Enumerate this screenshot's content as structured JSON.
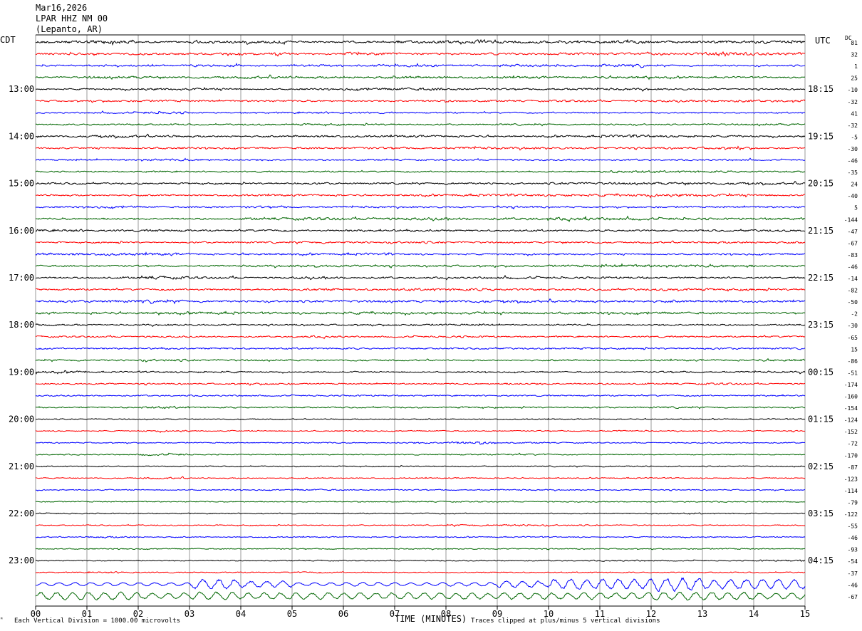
{
  "header": {
    "date": "Mar16,2026",
    "station": "LPAR HHZ NM 00",
    "location": "(Lepanto, AR)"
  },
  "corner_labels": {
    "left": "CDT",
    "right": "UTC",
    "dc": "DC"
  },
  "footer": {
    "scale_note": "Each Vertical Division = 1000.00 microvolts",
    "xlabel": "TIME (MINUTES)",
    "clip_note": "Traces clipped at plus/minus 5 vertical divisions"
  },
  "colors": {
    "cycle": [
      "#000000",
      "#ff0000",
      "#0000ff",
      "#006600"
    ],
    "grid": "#9a9a9a"
  },
  "chart_data": {
    "type": "helicorder",
    "x": {
      "label": "TIME (MINUTES)",
      "range": [
        0,
        15
      ],
      "ticks": [
        "00",
        "01",
        "02",
        "03",
        "04",
        "05",
        "06",
        "07",
        "08",
        "09",
        "10",
        "11",
        "12",
        "13",
        "14",
        "15"
      ]
    },
    "local_hour_labels": [
      "13:00",
      "14:00",
      "15:00",
      "16:00",
      "17:00",
      "18:00",
      "19:00",
      "20:00",
      "21:00",
      "22:00",
      "23:00"
    ],
    "utc_hour_labels": [
      "18:15",
      "19:15",
      "20:15",
      "21:15",
      "22:15",
      "23:15",
      "00:15",
      "01:15",
      "02:15",
      "03:15",
      "04:15"
    ],
    "dc_offsets": [
      81,
      32,
      1,
      25,
      -10,
      -32,
      41,
      -32,
      -5,
      -30,
      -46,
      -35,
      24,
      -40,
      5,
      -144,
      -47,
      -67,
      -83,
      -46,
      -14,
      -82,
      -50,
      -2,
      -30,
      -65,
      15,
      -86,
      -51,
      -174,
      -160,
      -154,
      -124,
      -152,
      -72,
      -170,
      -87,
      -123,
      -114,
      -79,
      -122,
      -55,
      -46,
      -93,
      -54,
      -37,
      -46,
      -67
    ],
    "trace_count": 48,
    "trace_minutes": 15,
    "activity": [
      [
        2.0,
        2.6,
        1.2,
        1.8,
        2.0,
        1.2,
        1.5,
        2.0,
        2.2,
        1.8,
        1.5,
        2.2,
        1.6,
        1.8,
        2.0
      ],
      [
        1.5,
        1.4,
        1.6,
        1.5,
        1.8,
        1.4,
        2.0,
        1.6,
        1.5,
        1.4,
        1.8,
        1.6,
        1.5,
        2.4,
        1.8
      ],
      [
        1.2,
        1.4,
        1.2,
        1.8,
        1.2,
        1.5,
        1.4,
        1.8,
        1.2,
        1.9,
        1.4,
        1.8,
        1.2,
        1.2,
        1.2
      ],
      [
        1.2,
        1.8,
        1.6,
        1.4,
        1.9,
        1.6,
        1.5,
        1.8,
        1.4,
        1.6,
        1.4,
        1.8,
        1.4,
        1.2,
        1.1
      ],
      [
        1.0,
        1.2,
        1.5,
        1.4,
        1.0,
        1.2,
        1.6,
        2.0,
        1.4,
        1.2,
        1.5,
        1.6,
        1.2,
        1.0,
        1.0
      ],
      [
        1.2,
        1.4,
        1.6,
        1.2,
        1.4,
        1.2,
        1.2,
        1.4,
        1.5,
        1.2,
        1.6,
        1.2,
        1.4,
        1.8,
        1.5
      ],
      [
        1.0,
        1.2,
        1.6,
        1.0,
        1.2,
        1.4,
        1.2,
        1.0,
        1.1,
        1.0,
        1.2,
        1.0,
        1.0,
        1.0,
        1.0
      ],
      [
        1.0,
        1.2,
        1.2,
        1.0,
        1.2,
        1.4,
        1.2,
        1.0,
        1.0,
        1.2,
        1.0,
        1.2,
        1.0,
        1.2,
        1.4
      ],
      [
        1.4,
        1.8,
        1.6,
        1.4,
        1.2,
        1.6,
        1.4,
        1.6,
        1.4,
        1.2,
        1.4,
        1.8,
        1.6,
        1.4,
        1.2
      ],
      [
        1.2,
        1.2,
        1.4,
        1.2,
        1.2,
        1.4,
        1.4,
        1.4,
        1.8,
        1.6,
        1.4,
        1.2,
        1.4,
        1.8,
        1.2
      ],
      [
        1.2,
        1.2,
        1.6,
        1.4,
        1.4,
        1.2,
        1.2,
        1.1,
        1.2,
        1.2,
        1.2,
        1.2,
        1.1,
        1.2,
        1.0
      ],
      [
        1.0,
        1.0,
        1.2,
        1.0,
        1.0,
        1.1,
        1.0,
        1.0,
        1.0,
        1.0,
        1.0,
        1.8,
        1.5,
        1.4,
        1.2
      ],
      [
        1.4,
        1.2,
        1.2,
        1.2,
        1.2,
        1.4,
        1.2,
        1.2,
        1.4,
        1.2,
        1.6,
        1.6,
        1.8,
        1.6,
        1.6
      ],
      [
        1.2,
        1.2,
        1.2,
        1.2,
        1.4,
        1.4,
        1.2,
        1.4,
        1.6,
        1.6,
        1.8,
        1.8,
        2.0,
        1.6,
        1.4
      ],
      [
        1.2,
        1.6,
        1.2,
        1.4,
        1.6,
        1.2,
        1.4,
        1.2,
        1.2,
        1.4,
        1.2,
        1.2,
        1.4,
        1.2,
        1.4
      ],
      [
        1.2,
        1.4,
        1.2,
        1.2,
        1.6,
        2.0,
        1.8,
        1.8,
        1.6,
        1.6,
        2.0,
        1.8,
        1.6,
        1.4,
        1.6
      ],
      [
        1.8,
        1.4,
        1.6,
        1.2,
        1.4,
        1.2,
        1.6,
        1.6,
        1.2,
        1.4,
        1.2,
        1.4,
        1.2,
        1.4,
        1.6
      ],
      [
        1.0,
        1.2,
        1.0,
        1.2,
        1.2,
        1.4,
        1.4,
        1.6,
        1.2,
        1.2,
        1.4,
        1.2,
        1.2,
        1.6,
        1.4
      ],
      [
        1.8,
        1.8,
        1.8,
        1.2,
        1.4,
        1.4,
        1.6,
        1.2,
        1.2,
        1.2,
        1.2,
        1.2,
        1.2,
        1.2,
        1.2
      ],
      [
        1.2,
        1.2,
        1.2,
        1.2,
        1.4,
        1.6,
        1.4,
        1.4,
        1.4,
        1.4,
        1.6,
        2.0,
        1.8,
        1.8,
        1.4
      ],
      [
        1.2,
        1.4,
        2.0,
        1.6,
        1.2,
        1.6,
        1.4,
        1.2,
        1.4,
        1.6,
        1.4,
        1.6,
        1.2,
        1.2,
        1.2
      ],
      [
        1.2,
        1.2,
        1.2,
        1.4,
        1.2,
        1.8,
        1.4,
        1.8,
        1.8,
        1.6,
        1.4,
        1.4,
        1.8,
        1.6,
        1.4
      ],
      [
        1.6,
        1.8,
        2.0,
        1.4,
        1.4,
        1.6,
        1.6,
        1.6,
        1.8,
        1.8,
        1.8,
        1.6,
        1.6,
        1.8,
        1.4
      ],
      [
        1.4,
        1.6,
        1.6,
        1.8,
        1.4,
        1.6,
        1.8,
        1.6,
        1.6,
        1.6,
        1.6,
        1.6,
        1.6,
        1.4,
        1.2
      ],
      [
        1.4,
        1.0,
        1.2,
        1.2,
        1.0,
        1.2,
        1.2,
        1.4,
        1.4,
        1.0,
        1.2,
        1.0,
        1.2,
        1.2,
        1.0
      ],
      [
        1.2,
        1.2,
        1.2,
        1.0,
        1.0,
        1.4,
        1.0,
        1.2,
        1.4,
        1.0,
        1.2,
        1.0,
        1.2,
        1.0,
        1.2
      ],
      [
        1.2,
        1.2,
        1.4,
        1.2,
        1.2,
        1.2,
        1.2,
        1.2,
        1.2,
        1.2,
        1.4,
        1.2,
        1.2,
        1.4,
        1.2
      ],
      [
        1.2,
        1.2,
        1.6,
        1.2,
        1.2,
        1.0,
        1.2,
        1.0,
        1.0,
        1.0,
        1.2,
        1.0,
        1.2,
        1.2,
        1.6
      ],
      [
        1.6,
        1.0,
        1.2,
        1.4,
        1.0,
        1.0,
        1.0,
        1.0,
        1.0,
        1.0,
        1.0,
        1.0,
        1.2,
        1.2,
        1.4
      ],
      [
        1.0,
        1.0,
        1.0,
        1.0,
        1.4,
        1.0,
        1.0,
        1.0,
        1.0,
        1.4,
        1.0,
        1.2,
        1.0,
        1.4,
        1.0
      ],
      [
        1.0,
        1.0,
        1.0,
        1.0,
        1.0,
        1.0,
        1.2,
        1.0,
        1.0,
        1.0,
        1.0,
        1.0,
        1.0,
        1.0,
        1.2
      ],
      [
        1.0,
        1.0,
        1.6,
        1.0,
        1.0,
        1.0,
        1.0,
        1.0,
        1.2,
        1.0,
        1.0,
        1.0,
        1.2,
        1.0,
        1.0
      ],
      [
        0.8,
        0.8,
        0.8,
        0.8,
        0.8,
        0.8,
        0.8,
        0.8,
        0.8,
        0.8,
        0.8,
        0.8,
        0.8,
        0.8,
        0.8
      ],
      [
        0.8,
        0.8,
        1.2,
        0.8,
        0.8,
        0.8,
        0.8,
        0.8,
        0.8,
        0.8,
        0.8,
        1.0,
        0.8,
        0.8,
        0.8
      ],
      [
        0.8,
        0.8,
        0.8,
        0.8,
        0.8,
        1.0,
        0.8,
        1.2,
        1.8,
        1.0,
        0.8,
        0.8,
        0.8,
        0.8,
        0.8
      ],
      [
        0.8,
        0.8,
        1.4,
        0.8,
        0.8,
        0.8,
        0.8,
        0.8,
        1.0,
        1.2,
        0.8,
        0.8,
        0.8,
        0.8,
        0.8
      ],
      [
        0.8,
        0.8,
        0.8,
        0.8,
        0.8,
        0.8,
        0.8,
        0.8,
        0.8,
        0.8,
        0.8,
        1.0,
        0.8,
        0.8,
        0.8
      ],
      [
        0.8,
        0.8,
        1.2,
        0.8,
        0.8,
        0.8,
        0.8,
        0.8,
        0.8,
        0.8,
        0.8,
        0.8,
        0.8,
        0.8,
        0.8
      ],
      [
        0.8,
        0.8,
        0.8,
        0.8,
        0.8,
        1.2,
        0.8,
        0.8,
        0.8,
        1.0,
        0.8,
        0.8,
        0.8,
        0.8,
        0.8
      ],
      [
        0.8,
        0.8,
        0.8,
        0.8,
        0.8,
        0.8,
        0.8,
        0.8,
        0.8,
        0.8,
        0.8,
        0.8,
        0.8,
        0.8,
        0.8
      ],
      [
        0.8,
        0.8,
        0.8,
        0.8,
        0.8,
        0.8,
        0.8,
        0.8,
        0.8,
        0.8,
        0.8,
        0.8,
        1.0,
        0.8,
        0.8
      ],
      [
        0.8,
        0.8,
        0.8,
        0.8,
        0.8,
        0.8,
        0.8,
        0.8,
        1.2,
        1.4,
        1.0,
        0.8,
        0.8,
        0.8,
        0.8
      ],
      [
        0.8,
        1.4,
        0.8,
        0.8,
        0.8,
        0.8,
        0.8,
        0.8,
        0.8,
        0.8,
        0.8,
        0.8,
        0.8,
        0.8,
        0.8
      ],
      [
        0.8,
        0.8,
        0.8,
        0.8,
        0.8,
        0.8,
        0.8,
        0.8,
        0.8,
        0.8,
        0.8,
        0.8,
        0.8,
        1.0,
        0.8
      ],
      [
        0.8,
        0.8,
        0.8,
        0.8,
        0.8,
        0.8,
        0.8,
        0.8,
        0.8,
        0.8,
        0.8,
        1.0,
        0.8,
        0.8,
        1.2
      ],
      [
        0.8,
        1.2,
        0.8,
        0.8,
        0.8,
        1.0,
        0.8,
        0.8,
        0.8,
        0.8,
        0.8,
        0.8,
        0.8,
        0.8,
        0.8
      ],
      [
        1.0,
        1.0,
        1.0,
        3.0,
        2.0,
        1.0,
        1.2,
        1.0,
        1.2,
        2.0,
        3.0,
        3.2,
        4.0,
        3.0,
        3.0
      ],
      [
        2.4,
        2.4,
        2.0,
        2.4,
        2.0,
        2.0,
        2.0,
        2.0,
        2.0,
        2.0,
        2.0,
        2.0,
        2.4,
        2.4,
        2.0
      ]
    ]
  }
}
